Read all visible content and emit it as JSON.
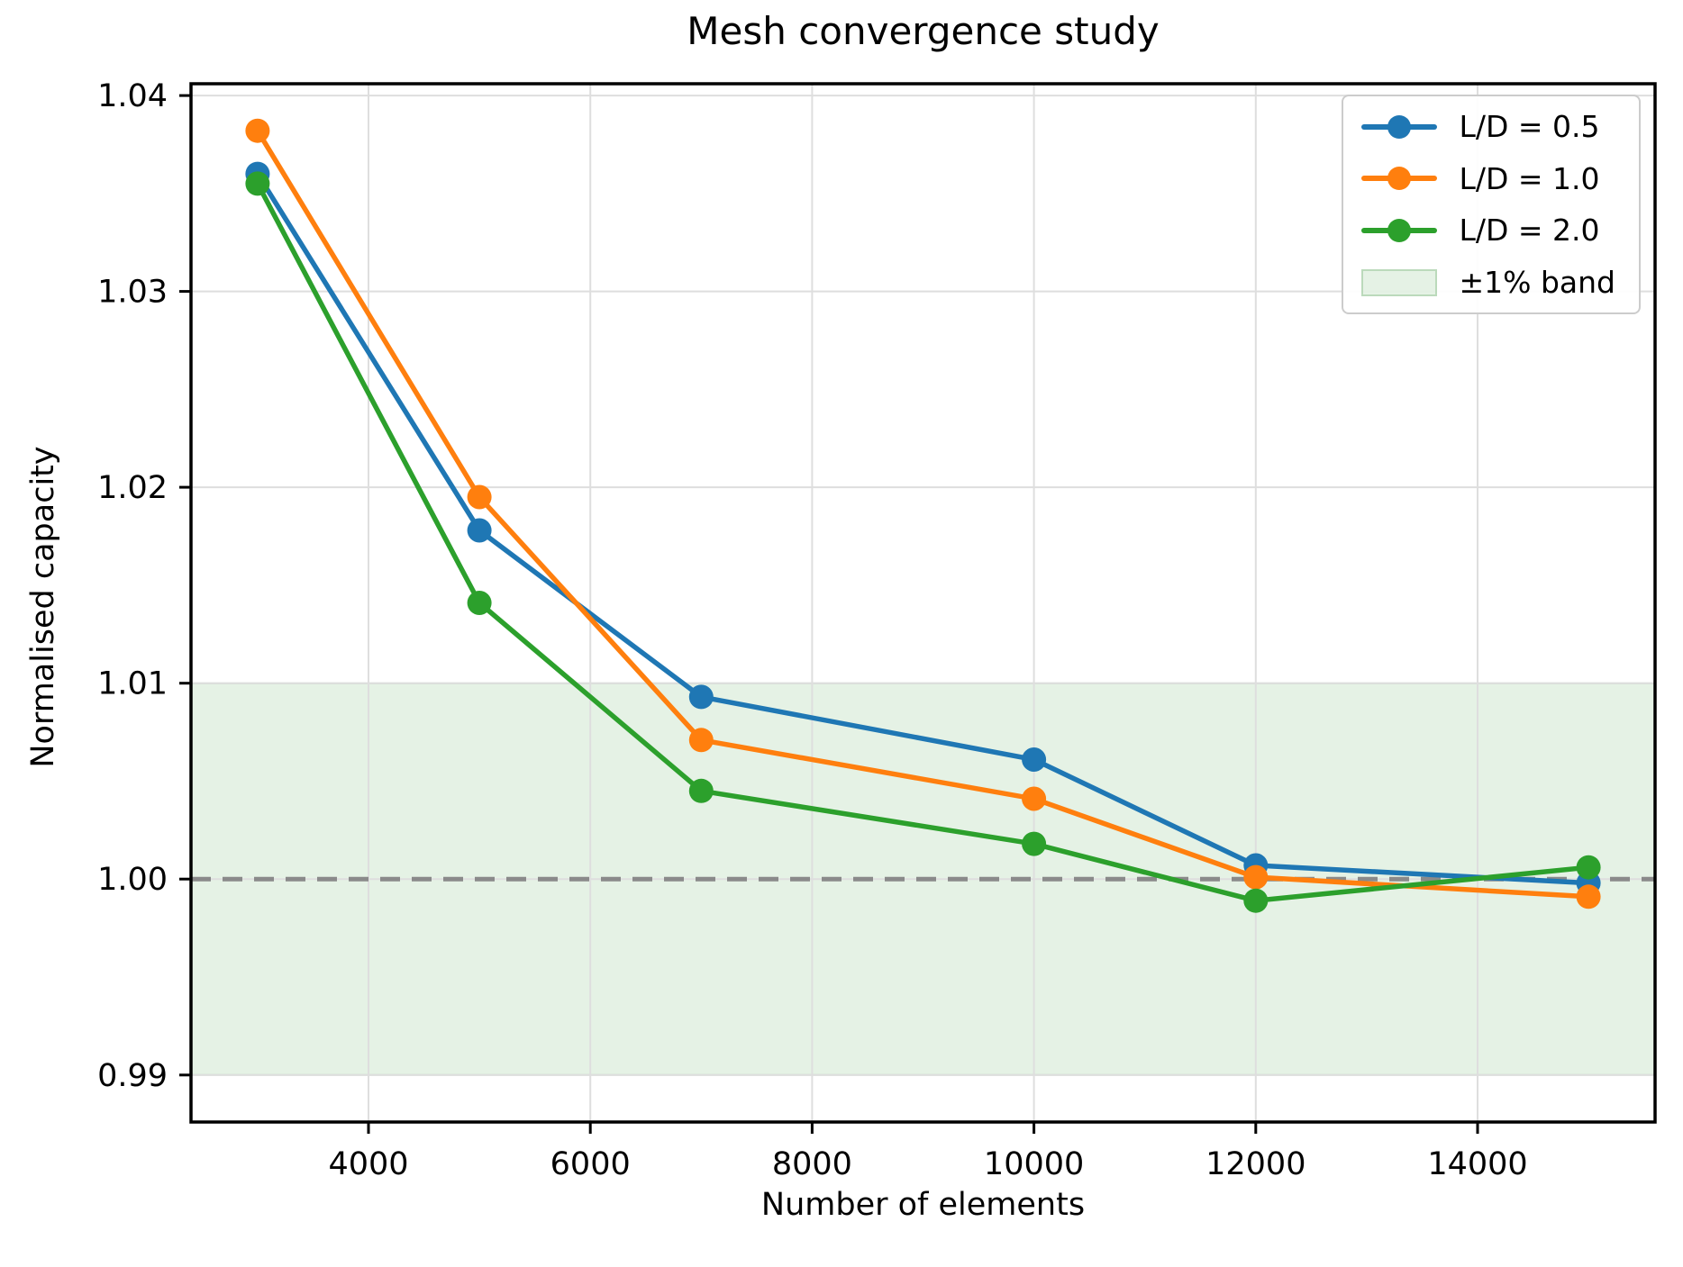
{
  "chart_data": {
    "type": "line",
    "title": "Mesh convergence study",
    "xlabel": "Number of elements",
    "ylabel": "Normalised capacity",
    "x": [
      3000,
      5000,
      7000,
      10000,
      12000,
      15000
    ],
    "series": [
      {
        "name": "L/D = 0.5",
        "color": "#1f77b4",
        "values": [
          1.036,
          1.0178,
          1.0093,
          1.0061,
          1.0007,
          0.9998
        ]
      },
      {
        "name": "L/D = 1.0",
        "color": "#ff7f0e",
        "values": [
          1.0382,
          1.0195,
          1.0071,
          1.0041,
          1.0001,
          0.9991
        ]
      },
      {
        "name": "L/D = 2.0",
        "color": "#2ca02c",
        "values": [
          1.0355,
          1.0141,
          1.0045,
          1.0018,
          0.9989,
          1.0006
        ]
      }
    ],
    "band": {
      "label": "±1% band",
      "ymin": 0.99,
      "ymax": 1.01,
      "fill": "rgba(0,128,0,0.10)",
      "edge": "rgba(0,110,0,0.18)"
    },
    "reference_line": {
      "y": 1.0,
      "color": "#8a8a8a",
      "style": "dashed"
    },
    "xticks": [
      4000,
      6000,
      8000,
      10000,
      12000,
      14000
    ],
    "ytick_labels": [
      "0.99",
      "1.00",
      "1.01",
      "1.02",
      "1.03",
      "1.04"
    ],
    "xlim": [
      2400,
      15600
    ],
    "ylim": [
      0.9876,
      1.0406
    ],
    "grid": true,
    "legend_position": "upper right"
  }
}
